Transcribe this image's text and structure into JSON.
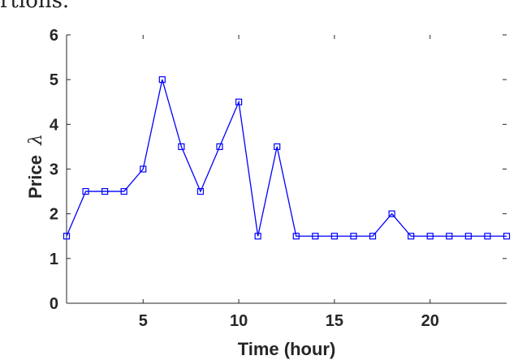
{
  "page": {
    "top_text": "rtions."
  },
  "chart_data": {
    "type": "line",
    "title": "",
    "xlabel": "Time (hour)",
    "ylabel_prefix": "Price",
    "ylabel_symbol": "λ",
    "xlim": [
      1,
      24
    ],
    "ylim": [
      0,
      6
    ],
    "xticks": [
      5,
      10,
      15,
      20
    ],
    "yticks": [
      0,
      1,
      2,
      3,
      4,
      5,
      6
    ],
    "grid": false,
    "marker": "square",
    "color": "#0000ff",
    "series": [
      {
        "x": [
          1,
          2,
          3,
          4,
          5,
          6,
          7,
          8,
          9,
          10,
          11,
          12,
          13,
          14,
          15,
          16,
          17,
          18,
          19,
          20,
          21,
          22,
          23,
          24
        ],
        "values": [
          1.5,
          2.5,
          2.5,
          2.5,
          3,
          5,
          3.5,
          2.5,
          3.5,
          4.5,
          1.5,
          3.5,
          1.5,
          1.5,
          1.5,
          1.5,
          1.5,
          2,
          1.5,
          1.5,
          1.5,
          1.5,
          1.5,
          1.5
        ]
      }
    ]
  }
}
